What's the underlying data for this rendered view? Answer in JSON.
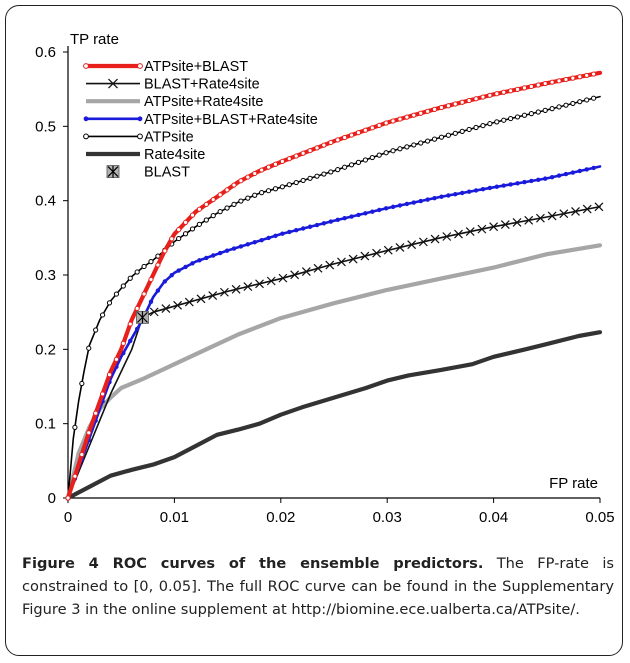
{
  "chart_data": {
    "type": "line",
    "xlabel": "FP rate",
    "ylabel": "TP rate",
    "xlim": [
      0,
      0.05
    ],
    "ylim": [
      0,
      0.6
    ],
    "xticks": [
      "0",
      "0.01",
      "0.02",
      "0.03",
      "0.04",
      "0.05"
    ],
    "yticks": [
      "0",
      "0.1",
      "0.2",
      "0.3",
      "0.4",
      "0.5",
      "0.6"
    ],
    "grid": false,
    "legend_position": "top-left",
    "series": [
      {
        "name": "ATPsite+BLAST",
        "color": "#e8201c",
        "style": "thick-line-open-circles",
        "points": [
          [
            0,
            0
          ],
          [
            0.001,
            0.045
          ],
          [
            0.002,
            0.09
          ],
          [
            0.003,
            0.13
          ],
          [
            0.004,
            0.17
          ],
          [
            0.005,
            0.2
          ],
          [
            0.006,
            0.24
          ],
          [
            0.007,
            0.27
          ],
          [
            0.008,
            0.3
          ],
          [
            0.009,
            0.33
          ],
          [
            0.01,
            0.355
          ],
          [
            0.012,
            0.385
          ],
          [
            0.014,
            0.405
          ],
          [
            0.016,
            0.425
          ],
          [
            0.018,
            0.44
          ],
          [
            0.02,
            0.452
          ],
          [
            0.025,
            0.48
          ],
          [
            0.03,
            0.505
          ],
          [
            0.035,
            0.525
          ],
          [
            0.04,
            0.543
          ],
          [
            0.045,
            0.558
          ],
          [
            0.05,
            0.572
          ]
        ]
      },
      {
        "name": "BLAST+Rate4site",
        "color": "#111111",
        "style": "thin-line-x-markers",
        "points": [
          [
            0,
            0
          ],
          [
            0.002,
            0.07
          ],
          [
            0.004,
            0.14
          ],
          [
            0.006,
            0.2
          ],
          [
            0.007,
            0.243
          ],
          [
            0.008,
            0.25
          ],
          [
            0.01,
            0.258
          ],
          [
            0.015,
            0.278
          ],
          [
            0.02,
            0.295
          ],
          [
            0.025,
            0.315
          ],
          [
            0.03,
            0.333
          ],
          [
            0.035,
            0.35
          ],
          [
            0.04,
            0.365
          ],
          [
            0.045,
            0.378
          ],
          [
            0.05,
            0.392
          ]
        ]
      },
      {
        "name": "ATPsite+Rate4site",
        "color": "#a6a6a6",
        "style": "thick-line",
        "points": [
          [
            0,
            0
          ],
          [
            0.001,
            0.06
          ],
          [
            0.002,
            0.095
          ],
          [
            0.003,
            0.12
          ],
          [
            0.004,
            0.135
          ],
          [
            0.005,
            0.148
          ],
          [
            0.007,
            0.16
          ],
          [
            0.01,
            0.18
          ],
          [
            0.013,
            0.2
          ],
          [
            0.016,
            0.22
          ],
          [
            0.02,
            0.242
          ],
          [
            0.025,
            0.262
          ],
          [
            0.03,
            0.28
          ],
          [
            0.035,
            0.295
          ],
          [
            0.04,
            0.31
          ],
          [
            0.045,
            0.328
          ],
          [
            0.05,
            0.34
          ]
        ]
      },
      {
        "name": "ATPsite+BLAST+Rate4site",
        "color": "#1a1adb",
        "style": "line-filled-dots",
        "points": [
          [
            0,
            0
          ],
          [
            0.001,
            0.04
          ],
          [
            0.002,
            0.08
          ],
          [
            0.003,
            0.12
          ],
          [
            0.004,
            0.16
          ],
          [
            0.005,
            0.19
          ],
          [
            0.006,
            0.215
          ],
          [
            0.007,
            0.24
          ],
          [
            0.008,
            0.27
          ],
          [
            0.009,
            0.29
          ],
          [
            0.01,
            0.303
          ],
          [
            0.012,
            0.318
          ],
          [
            0.015,
            0.333
          ],
          [
            0.018,
            0.346
          ],
          [
            0.02,
            0.355
          ],
          [
            0.025,
            0.373
          ],
          [
            0.03,
            0.39
          ],
          [
            0.035,
            0.405
          ],
          [
            0.04,
            0.418
          ],
          [
            0.045,
            0.43
          ],
          [
            0.05,
            0.446
          ]
        ]
      },
      {
        "name": "ATPsite",
        "color": "#000000",
        "style": "line-open-circles",
        "points": [
          [
            0,
            0
          ],
          [
            0.0005,
            0.08
          ],
          [
            0.001,
            0.13
          ],
          [
            0.0015,
            0.17
          ],
          [
            0.002,
            0.205
          ],
          [
            0.003,
            0.24
          ],
          [
            0.004,
            0.265
          ],
          [
            0.005,
            0.282
          ],
          [
            0.006,
            0.298
          ],
          [
            0.007,
            0.31
          ],
          [
            0.008,
            0.32
          ],
          [
            0.009,
            0.332
          ],
          [
            0.01,
            0.345
          ],
          [
            0.012,
            0.365
          ],
          [
            0.014,
            0.383
          ],
          [
            0.016,
            0.398
          ],
          [
            0.018,
            0.41
          ],
          [
            0.02,
            0.418
          ],
          [
            0.025,
            0.44
          ],
          [
            0.03,
            0.465
          ],
          [
            0.035,
            0.485
          ],
          [
            0.04,
            0.505
          ],
          [
            0.045,
            0.522
          ],
          [
            0.05,
            0.54
          ]
        ]
      },
      {
        "name": "Rate4site",
        "color": "#333333",
        "style": "thick-line",
        "points": [
          [
            0,
            0
          ],
          [
            0.002,
            0.015
          ],
          [
            0.004,
            0.03
          ],
          [
            0.006,
            0.038
          ],
          [
            0.008,
            0.045
          ],
          [
            0.01,
            0.055
          ],
          [
            0.012,
            0.07
          ],
          [
            0.014,
            0.085
          ],
          [
            0.016,
            0.092
          ],
          [
            0.018,
            0.1
          ],
          [
            0.02,
            0.112
          ],
          [
            0.022,
            0.122
          ],
          [
            0.025,
            0.135
          ],
          [
            0.028,
            0.148
          ],
          [
            0.03,
            0.158
          ],
          [
            0.032,
            0.165
          ],
          [
            0.035,
            0.172
          ],
          [
            0.038,
            0.18
          ],
          [
            0.04,
            0.19
          ],
          [
            0.043,
            0.2
          ],
          [
            0.045,
            0.207
          ],
          [
            0.048,
            0.218
          ],
          [
            0.05,
            0.223
          ]
        ]
      },
      {
        "name": "BLAST",
        "color": "#b0b0b0",
        "style": "single-point",
        "points": [
          [
            0.007,
            0.243
          ]
        ]
      }
    ]
  },
  "caption": {
    "bold": "Figure 4 ROC curves of the ensemble predictors.",
    "text": " The FP-rate is constrained to [0, 0.05]. The full ROC curve can be found in the Supplementary Figure 3 in the online supplement at http://biomine.ece.ualberta.ca/ATPsite/."
  }
}
